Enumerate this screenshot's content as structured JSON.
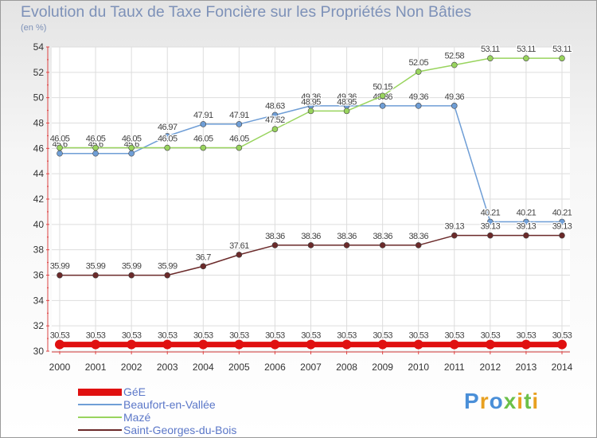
{
  "title": "Evolution du Taux de Taxe Foncière sur les Propriétés Non Bâties",
  "subtitle": "(en %)",
  "logo": "Proxiti",
  "chart_data": {
    "type": "line",
    "title": "Evolution du Taux de Taxe Foncière sur les Propriétés Non Bâties",
    "ylabel": "(en %)",
    "xlabel": "",
    "x": [
      "2000",
      "2001",
      "2002",
      "2003",
      "2004",
      "2005",
      "2006",
      "2007",
      "2008",
      "2009",
      "2010",
      "2011",
      "2012",
      "2013",
      "2014"
    ],
    "ylim": [
      30,
      54
    ],
    "yticks": [
      30,
      32,
      34,
      36,
      38,
      40,
      42,
      44,
      46,
      48,
      50,
      52,
      54
    ],
    "legend_position": "bottom-left",
    "series": [
      {
        "name": "GéE",
        "color": "#e01010",
        "values": [
          30.53,
          30.53,
          30.53,
          30.53,
          30.53,
          30.53,
          30.53,
          30.53,
          30.53,
          30.53,
          30.53,
          30.53,
          30.53,
          30.53,
          30.53
        ],
        "labels": [
          "30.53",
          "30.53",
          "30.53",
          "30.53",
          "30.53",
          "30.53",
          "30.53",
          "30.53",
          "30.53",
          "30.53",
          "30.53",
          "30.53",
          "30.53",
          "30.53",
          "30.53"
        ]
      },
      {
        "name": "Beaufort-en-Vallée",
        "color": "#6f9ed6",
        "values": [
          45.6,
          45.6,
          45.6,
          46.97,
          47.91,
          47.91,
          48.63,
          49.36,
          49.36,
          49.36,
          49.36,
          49.36,
          40.21,
          40.21,
          40.21
        ],
        "labels": [
          "45.6",
          "45.6",
          "45.6",
          "46.97",
          "47.91",
          "47.91",
          "48.63",
          "49.36",
          "49.36",
          "49.36",
          "49.36",
          "49.36",
          "40.21",
          "40.21",
          "40.21"
        ]
      },
      {
        "name": "Mazé",
        "color": "#99d45e",
        "values": [
          46.05,
          46.05,
          46.05,
          46.05,
          46.05,
          46.05,
          47.52,
          48.95,
          48.95,
          50.15,
          52.05,
          52.58,
          53.11,
          53.11,
          53.11
        ],
        "labels": [
          "46.05",
          "46.05",
          "46.05",
          "46.05",
          "46.05",
          "46.05",
          "47.52",
          "48.95",
          "48.95",
          "50.15",
          "52.05",
          "52.58",
          "53.11",
          "53.11",
          "53.11"
        ]
      },
      {
        "name": "Saint-Georges-du-Bois",
        "color": "#6b2a2a",
        "values": [
          35.99,
          35.99,
          35.99,
          35.99,
          36.7,
          37.61,
          38.36,
          38.36,
          38.36,
          38.36,
          38.36,
          39.13,
          39.13,
          39.13,
          39.13
        ],
        "labels": [
          "35.99",
          "35.99",
          "35.99",
          "35.99",
          "36.7",
          "37.61",
          "38.36",
          "38.36",
          "38.36",
          "38.36",
          "38.36",
          "39.13",
          "39.13",
          "39.13",
          "39.13"
        ]
      }
    ]
  }
}
